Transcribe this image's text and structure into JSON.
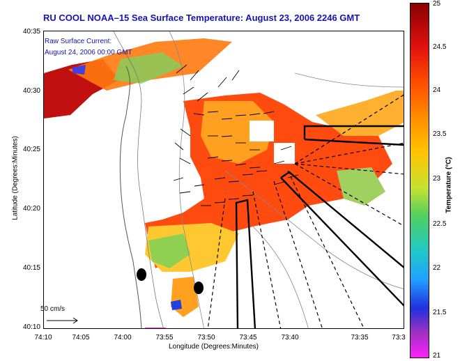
{
  "title": "RU COOL  NOAA–15  Sea Surface Temperature:  August 23, 2006 2246 GMT",
  "current_legend": {
    "line1": "Raw Surface Current:",
    "line2": "August 24, 2006 00:00 GMT"
  },
  "axes": {
    "xlabel": "Longitude (Degrees:Minutes)",
    "ylabel": "Latitude (Degrees:Minutes)",
    "xticks": [
      "74:10",
      "74:05",
      "74:00",
      "73:55",
      "73:50",
      "73:45",
      "73:40",
      "73:35",
      "73:3"
    ],
    "yticks": [
      "40:35",
      "40:30",
      "40:25",
      "40:20",
      "40:15",
      "40:10"
    ]
  },
  "colorbar": {
    "label": "Temperature (°C)",
    "ticks": [
      "25",
      "24.5",
      "24",
      "23.5",
      "23",
      "22.5",
      "22",
      "21.5",
      "21"
    ]
  },
  "scale_label": "50 cm/s"
}
